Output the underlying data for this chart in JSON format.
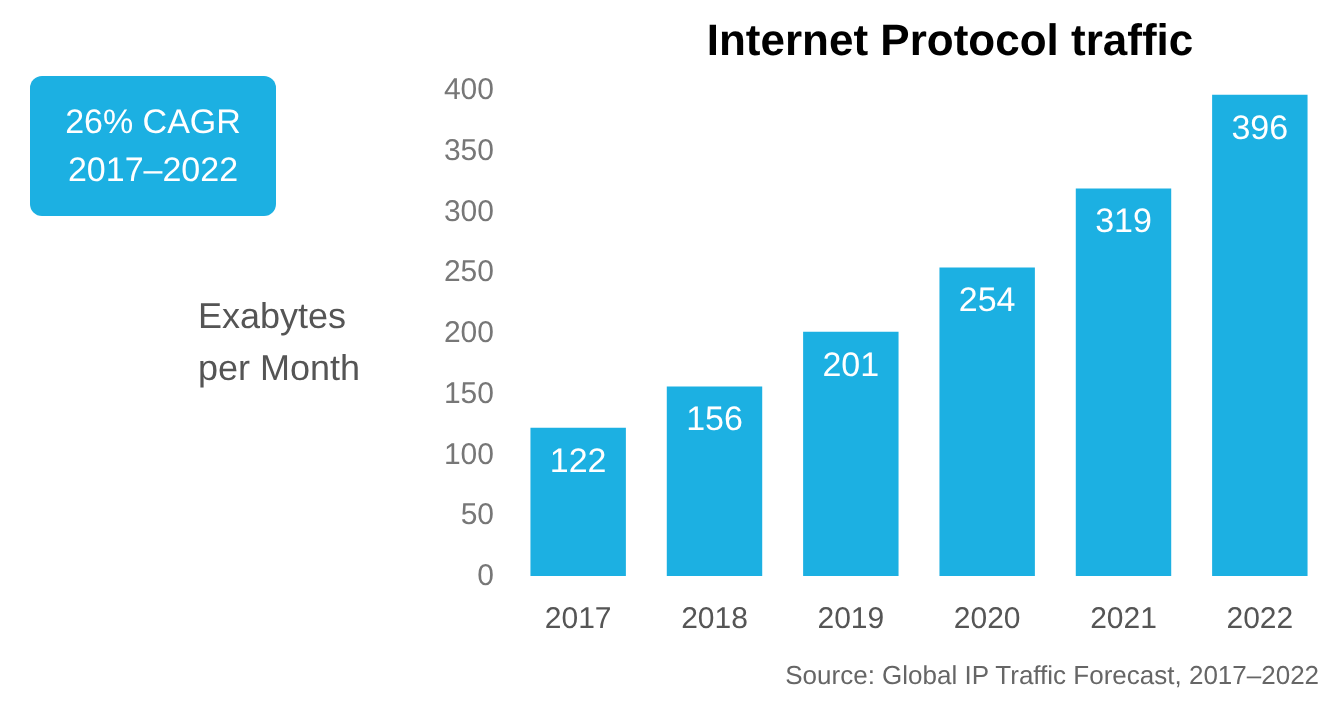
{
  "chart_data": {
    "type": "bar",
    "title": "Internet Protocol traffic",
    "ylabel": "Exabytes\nper Month",
    "categories": [
      "2017",
      "2018",
      "2019",
      "2020",
      "2021",
      "2022"
    ],
    "values": [
      122,
      156,
      201,
      254,
      319,
      396
    ],
    "color": "#1cb0e2",
    "ylim": [
      0,
      400
    ],
    "yticks": [
      0,
      50,
      100,
      150,
      200,
      250,
      300,
      350,
      400
    ],
    "grid": false,
    "data_labels": true,
    "annotations": [
      "26% CAGR\n2017–2022",
      "Source: Global IP Traffic Forecast, 2017–2022"
    ]
  }
}
